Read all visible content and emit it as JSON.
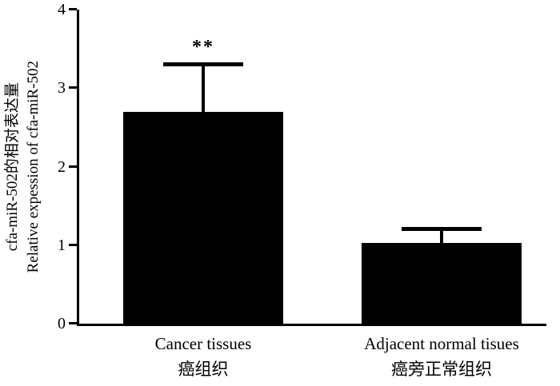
{
  "chart_data": {
    "type": "bar",
    "title": "",
    "categories": [
      "Cancer tissues",
      "Adjacent normal tisues"
    ],
    "categories_zh": [
      "癌组织",
      "癌旁正常组织"
    ],
    "values": [
      2.7,
      1.03
    ],
    "errors_upper": [
      0.6,
      0.17
    ],
    "significance": [
      "**",
      ""
    ],
    "ylabel_zh": "cfa-miR-502的相对表达量",
    "ylabel_en": "Relative expession of cfa-miR-502",
    "xlabel": "",
    "ylim": [
      0,
      4
    ],
    "yticks": [
      0,
      1,
      2,
      3,
      4
    ],
    "bar_color": "#000000",
    "axis_color": "#000000",
    "background_color": "#ffffff",
    "grid": false,
    "legend": "none"
  }
}
